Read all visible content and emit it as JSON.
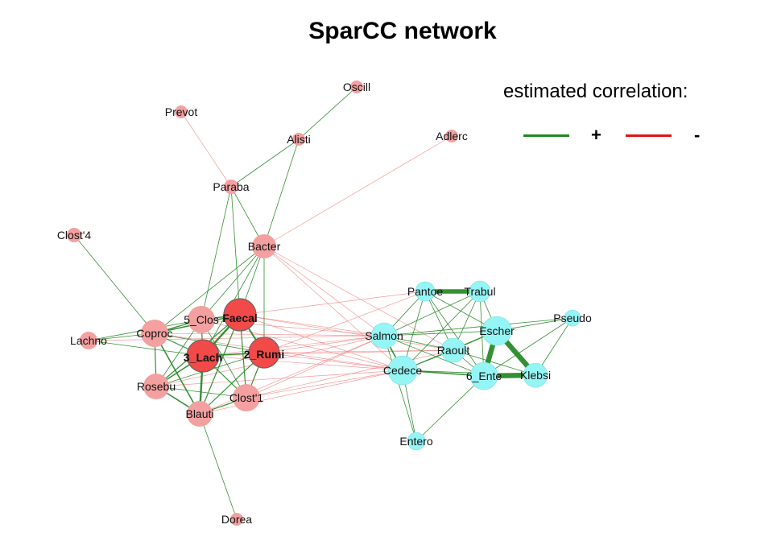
{
  "title": "SparCC network",
  "legend": {
    "title": "estimated correlation:",
    "positive_symbol": "+",
    "negative_symbol": "-",
    "positive_color": "#1f8a1f",
    "negative_color": "#e01515"
  },
  "colors": {
    "cluster_a_node": "#f4a0a0",
    "cluster_a_hub": "#f24a48",
    "cluster_b_node": "#95f5f5",
    "node_border_hub": "#666666",
    "positive_edge": "#2a8a2a",
    "negative_edge": "#f28a8a"
  },
  "nodes": [
    {
      "id": "Oscill",
      "label": "Oscill",
      "group": "a",
      "hub": false
    },
    {
      "id": "Prevot",
      "label": "Prevot",
      "group": "a",
      "hub": false
    },
    {
      "id": "Alisti",
      "label": "Alisti",
      "group": "a",
      "hub": false
    },
    {
      "id": "Adlerc",
      "label": "Adlerc",
      "group": "a",
      "hub": false
    },
    {
      "id": "Paraba",
      "label": "Paraba",
      "group": "a",
      "hub": false
    },
    {
      "id": "Clost4",
      "label": "Clost'4",
      "group": "a",
      "hub": false
    },
    {
      "id": "Bacter",
      "label": "Bacter",
      "group": "a",
      "hub": false
    },
    {
      "id": "Lachno",
      "label": "Lachno",
      "group": "a",
      "hub": false
    },
    {
      "id": "Coproc",
      "label": "Coproc",
      "group": "a",
      "hub": false
    },
    {
      "id": "5_Clos",
      "label": "5_Clos",
      "group": "a",
      "hub": false
    },
    {
      "id": "Faecal",
      "label": "Faecal",
      "group": "a",
      "hub": true
    },
    {
      "id": "3_Lach",
      "label": "3_Lach",
      "group": "a",
      "hub": true
    },
    {
      "id": "2_Rumi",
      "label": "2_Rumi",
      "group": "a",
      "hub": true
    },
    {
      "id": "Rosebu",
      "label": "Rosebu",
      "group": "a",
      "hub": false
    },
    {
      "id": "Clost1",
      "label": "Clost'1",
      "group": "a",
      "hub": false
    },
    {
      "id": "Blauti",
      "label": "Blauti",
      "group": "a",
      "hub": false
    },
    {
      "id": "Dorea",
      "label": "Dorea",
      "group": "a",
      "hub": false
    },
    {
      "id": "Pantoe",
      "label": "Pantoe",
      "group": "b",
      "hub": false
    },
    {
      "id": "Trabul",
      "label": "Trabul",
      "group": "b",
      "hub": false
    },
    {
      "id": "Pseudo",
      "label": "Pseudo",
      "group": "b",
      "hub": false
    },
    {
      "id": "Salmon",
      "label": "Salmon",
      "group": "b",
      "hub": false
    },
    {
      "id": "Escher",
      "label": "Escher",
      "group": "b",
      "hub": false
    },
    {
      "id": "Raoult",
      "label": "Raoult",
      "group": "b",
      "hub": false
    },
    {
      "id": "Cedece",
      "label": "Cedece",
      "group": "b",
      "hub": false
    },
    {
      "id": "6_Ente",
      "label": "6_Ente",
      "group": "b",
      "hub": false
    },
    {
      "id": "Klebsi",
      "label": "Klebsi",
      "group": "b",
      "hub": false
    },
    {
      "id": "Entero",
      "label": "Entero",
      "group": "b",
      "hub": false
    }
  ],
  "edges": [
    {
      "s": "Oscill",
      "t": "Alisti",
      "sign": "+",
      "w": 1
    },
    {
      "s": "Alisti",
      "t": "Paraba",
      "sign": "+",
      "w": 1
    },
    {
      "s": "Alisti",
      "t": "Bacter",
      "sign": "+",
      "w": 1
    },
    {
      "s": "Prevot",
      "t": "Paraba",
      "sign": "-",
      "w": 1
    },
    {
      "s": "Adlerc",
      "t": "Bacter",
      "sign": "-",
      "w": 1
    },
    {
      "s": "Paraba",
      "t": "Bacter",
      "sign": "+",
      "w": 1
    },
    {
      "s": "Paraba",
      "t": "Faecal",
      "sign": "+",
      "w": 1
    },
    {
      "s": "Paraba",
      "t": "5_Clos",
      "sign": "+",
      "w": 1
    },
    {
      "s": "Clost4",
      "t": "Coproc",
      "sign": "+",
      "w": 1
    },
    {
      "s": "Bacter",
      "t": "5_Clos",
      "sign": "+",
      "w": 1
    },
    {
      "s": "Bacter",
      "t": "Faecal",
      "sign": "+",
      "w": 1
    },
    {
      "s": "Bacter",
      "t": "2_Rumi",
      "sign": "+",
      "w": 1
    },
    {
      "s": "Bacter",
      "t": "3_Lach",
      "sign": "+",
      "w": 1
    },
    {
      "s": "Bacter",
      "t": "Coproc",
      "sign": "+",
      "w": 1
    },
    {
      "s": "Bacter",
      "t": "Salmon",
      "sign": "-",
      "w": 1
    },
    {
      "s": "Bacter",
      "t": "Cedece",
      "sign": "-",
      "w": 1
    },
    {
      "s": "Bacter",
      "t": "Raoult",
      "sign": "-",
      "w": 1
    },
    {
      "s": "Lachno",
      "t": "Coproc",
      "sign": "+",
      "w": 1
    },
    {
      "s": "Lachno",
      "t": "3_Lach",
      "sign": "+",
      "w": 1
    },
    {
      "s": "Lachno",
      "t": "5_Clos",
      "sign": "+",
      "w": 1
    },
    {
      "s": "Coproc",
      "t": "5_Clos",
      "sign": "+",
      "w": 1.5
    },
    {
      "s": "Coproc",
      "t": "Faecal",
      "sign": "+",
      "w": 2
    },
    {
      "s": "Coproc",
      "t": "3_Lach",
      "sign": "+",
      "w": 1.5
    },
    {
      "s": "Coproc",
      "t": "Rosebu",
      "sign": "+",
      "w": 1.5
    },
    {
      "s": "Coproc",
      "t": "Blauti",
      "sign": "+",
      "w": 2
    },
    {
      "s": "Coproc",
      "t": "2_Rumi",
      "sign": "+",
      "w": 1
    },
    {
      "s": "5_Clos",
      "t": "Faecal",
      "sign": "+",
      "w": 2
    },
    {
      "s": "5_Clos",
      "t": "3_Lach",
      "sign": "+",
      "w": 1.5
    },
    {
      "s": "5_Clos",
      "t": "Rosebu",
      "sign": "+",
      "w": 1
    },
    {
      "s": "5_Clos",
      "t": "Clost1",
      "sign": "+",
      "w": 1
    },
    {
      "s": "Faecal",
      "t": "3_Lach",
      "sign": "+",
      "w": 3
    },
    {
      "s": "Faecal",
      "t": "2_Rumi",
      "sign": "+",
      "w": 2.5
    },
    {
      "s": "Faecal",
      "t": "Rosebu",
      "sign": "+",
      "w": 1.5
    },
    {
      "s": "Faecal",
      "t": "Blauti",
      "sign": "+",
      "w": 1.5
    },
    {
      "s": "Faecal",
      "t": "Clost1",
      "sign": "+",
      "w": 1.5
    },
    {
      "s": "3_Lach",
      "t": "2_Rumi",
      "sign": "+",
      "w": 2
    },
    {
      "s": "3_Lach",
      "t": "Rosebu",
      "sign": "+",
      "w": 2
    },
    {
      "s": "3_Lach",
      "t": "Blauti",
      "sign": "+",
      "w": 3
    },
    {
      "s": "3_Lach",
      "t": "Clost1",
      "sign": "+",
      "w": 1.5
    },
    {
      "s": "2_Rumi",
      "t": "Clost1",
      "sign": "+",
      "w": 1.5
    },
    {
      "s": "2_Rumi",
      "t": "Blauti",
      "sign": "+",
      "w": 1.5
    },
    {
      "s": "2_Rumi",
      "t": "Rosebu",
      "sign": "+",
      "w": 1
    },
    {
      "s": "Rosebu",
      "t": "Blauti",
      "sign": "+",
      "w": 2
    },
    {
      "s": "Rosebu",
      "t": "Clost1",
      "sign": "+",
      "w": 1
    },
    {
      "s": "Clost1",
      "t": "Blauti",
      "sign": "+",
      "w": 1.5
    },
    {
      "s": "Blauti",
      "t": "Dorea",
      "sign": "+",
      "w": 1
    },
    {
      "s": "Faecal",
      "t": "Pantoe",
      "sign": "-",
      "w": 1
    },
    {
      "s": "Faecal",
      "t": "Salmon",
      "sign": "-",
      "w": 1
    },
    {
      "s": "Faecal",
      "t": "Cedece",
      "sign": "-",
      "w": 1
    },
    {
      "s": "Faecal",
      "t": "Raoult",
      "sign": "-",
      "w": 1
    },
    {
      "s": "5_Clos",
      "t": "Salmon",
      "sign": "-",
      "w": 1
    },
    {
      "s": "5_Clos",
      "t": "Cedece",
      "sign": "-",
      "w": 1
    },
    {
      "s": "Coproc",
      "t": "Salmon",
      "sign": "-",
      "w": 1
    },
    {
      "s": "Coproc",
      "t": "Cedece",
      "sign": "-",
      "w": 1
    },
    {
      "s": "3_Lach",
      "t": "Salmon",
      "sign": "-",
      "w": 1
    },
    {
      "s": "3_Lach",
      "t": "Cedece",
      "sign": "-",
      "w": 1
    },
    {
      "s": "3_Lach",
      "t": "Raoult",
      "sign": "-",
      "w": 1
    },
    {
      "s": "2_Rumi",
      "t": "Salmon",
      "sign": "-",
      "w": 1
    },
    {
      "s": "2_Rumi",
      "t": "Cedece",
      "sign": "-",
      "w": 1
    },
    {
      "s": "2_Rumi",
      "t": "Raoult",
      "sign": "-",
      "w": 1
    },
    {
      "s": "2_Rumi",
      "t": "Pantoe",
      "sign": "-",
      "w": 1
    },
    {
      "s": "Rosebu",
      "t": "Salmon",
      "sign": "-",
      "w": 1
    },
    {
      "s": "Rosebu",
      "t": "Cedece",
      "sign": "-",
      "w": 1
    },
    {
      "s": "Clost1",
      "t": "Salmon",
      "sign": "-",
      "w": 1
    },
    {
      "s": "Clost1",
      "t": "Cedece",
      "sign": "-",
      "w": 1
    },
    {
      "s": "Clost1",
      "t": "Raoult",
      "sign": "-",
      "w": 1
    },
    {
      "s": "Blauti",
      "t": "Salmon",
      "sign": "-",
      "w": 1
    },
    {
      "s": "Blauti",
      "t": "Cedece",
      "sign": "-",
      "w": 1
    },
    {
      "s": "Lachno",
      "t": "Salmon",
      "sign": "-",
      "w": 1
    },
    {
      "s": "Pantoe",
      "t": "Trabul",
      "sign": "+",
      "w": 7
    },
    {
      "s": "Pantoe",
      "t": "Salmon",
      "sign": "+",
      "w": 1
    },
    {
      "s": "Pantoe",
      "t": "Raoult",
      "sign": "+",
      "w": 1
    },
    {
      "s": "Pantoe",
      "t": "Cedece",
      "sign": "+",
      "w": 1
    },
    {
      "s": "Pantoe",
      "t": "Escher",
      "sign": "+",
      "w": 1
    },
    {
      "s": "Pantoe",
      "t": "6_Ente",
      "sign": "+",
      "w": 1
    },
    {
      "s": "Trabul",
      "t": "Salmon",
      "sign": "+",
      "w": 1
    },
    {
      "s": "Trabul",
      "t": "Escher",
      "sign": "+",
      "w": 1
    },
    {
      "s": "Trabul",
      "t": "Raoult",
      "sign": "+",
      "w": 1
    },
    {
      "s": "Trabul",
      "t": "6_Ente",
      "sign": "+",
      "w": 1
    },
    {
      "s": "Trabul",
      "t": "Cedece",
      "sign": "+",
      "w": 1
    },
    {
      "s": "Pseudo",
      "t": "Escher",
      "sign": "+",
      "w": 1
    },
    {
      "s": "Pseudo",
      "t": "Klebsi",
      "sign": "+",
      "w": 1
    },
    {
      "s": "Pseudo",
      "t": "6_Ente",
      "sign": "+",
      "w": 1
    },
    {
      "s": "Pseudo",
      "t": "Salmon",
      "sign": "+",
      "w": 1
    },
    {
      "s": "Salmon",
      "t": "Cedece",
      "sign": "+",
      "w": 2
    },
    {
      "s": "Salmon",
      "t": "Raoult",
      "sign": "+",
      "w": 1
    },
    {
      "s": "Salmon",
      "t": "Escher",
      "sign": "+",
      "w": 1
    },
    {
      "s": "Salmon",
      "t": "6_Ente",
      "sign": "+",
      "w": 1
    },
    {
      "s": "Salmon",
      "t": "Entero",
      "sign": "+",
      "w": 1
    },
    {
      "s": "Escher",
      "t": "Klebsi",
      "sign": "+",
      "w": 8
    },
    {
      "s": "Escher",
      "t": "6_Ente",
      "sign": "+",
      "w": 8
    },
    {
      "s": "Escher",
      "t": "Raoult",
      "sign": "+",
      "w": 1
    },
    {
      "s": "Escher",
      "t": "Cedece",
      "sign": "+",
      "w": 1
    },
    {
      "s": "6_Ente",
      "t": "Klebsi",
      "sign": "+",
      "w": 8
    },
    {
      "s": "6_Ente",
      "t": "Raoult",
      "sign": "+",
      "w": 1
    },
    {
      "s": "6_Ente",
      "t": "Cedece",
      "sign": "+",
      "w": 2
    },
    {
      "s": "Raoult",
      "t": "Cedece",
      "sign": "+",
      "w": 1
    },
    {
      "s": "Raoult",
      "t": "Klebsi",
      "sign": "+",
      "w": 1
    },
    {
      "s": "Cedece",
      "t": "Klebsi",
      "sign": "+",
      "w": 1
    },
    {
      "s": "Cedece",
      "t": "Entero",
      "sign": "+",
      "w": 1
    },
    {
      "s": "Entero",
      "t": "6_Ente",
      "sign": "+",
      "w": 1
    }
  ]
}
